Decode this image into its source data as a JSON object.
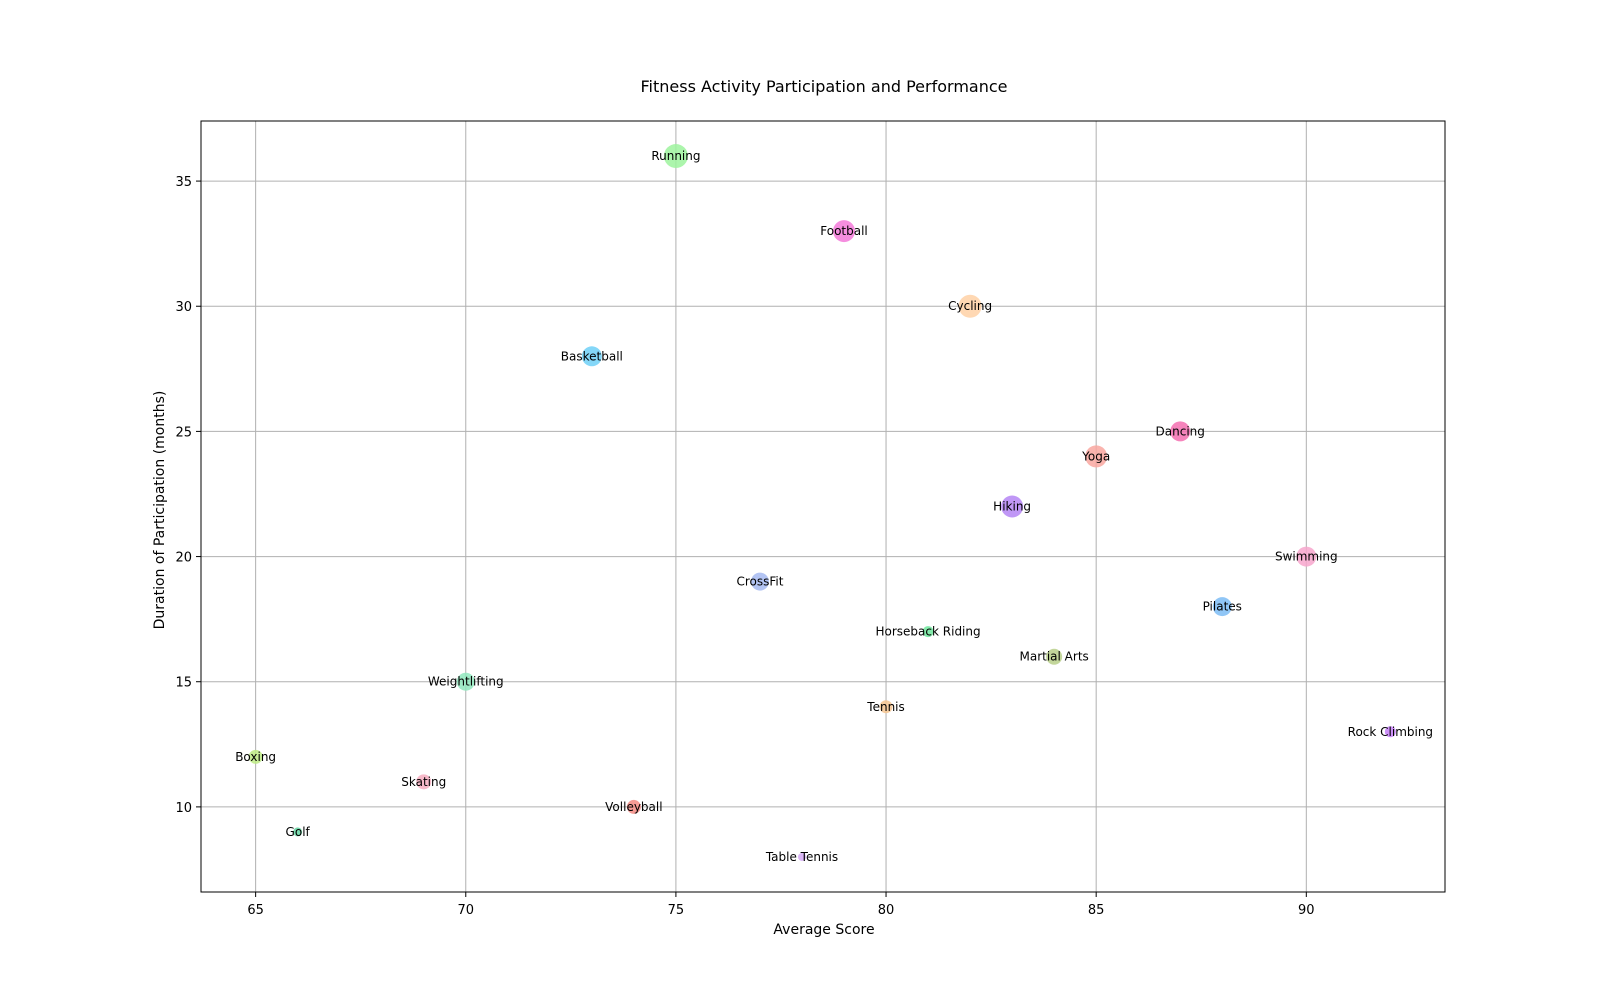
{
  "chart_data": {
    "type": "scatter",
    "title": "Fitness Activity Participation and Performance",
    "xlabel": "Average Score",
    "ylabel": "Duration of Participation (months)",
    "xlim": [
      63.7,
      93.3
    ],
    "ylim": [
      6.6,
      37.4
    ],
    "xticks": [
      65,
      70,
      75,
      80,
      85,
      90
    ],
    "yticks": [
      10,
      15,
      20,
      25,
      30,
      35
    ],
    "grid": true,
    "legend": "none",
    "marker_encoding": "bubble size varies by activity",
    "points": [
      {
        "label": "Running",
        "x": 75,
        "y": 36,
        "size": 12,
        "color": "#9ef39e"
      },
      {
        "label": "Football",
        "x": 79,
        "y": 33,
        "size": 11,
        "color": "#f37ad9"
      },
      {
        "label": "Cycling",
        "x": 82,
        "y": 30,
        "size": 11.5,
        "color": "#ffd1a6"
      },
      {
        "label": "Basketball",
        "x": 73,
        "y": 28,
        "size": 10,
        "color": "#6ed0f7"
      },
      {
        "label": "Dancing",
        "x": 87,
        "y": 25,
        "size": 10,
        "color": "#f46fb0"
      },
      {
        "label": "Yoga",
        "x": 85,
        "y": 24,
        "size": 11,
        "color": "#f9a7a0"
      },
      {
        "label": "Hiking",
        "x": 83,
        "y": 22,
        "size": 11,
        "color": "#b585f5"
      },
      {
        "label": "Swimming",
        "x": 90,
        "y": 20,
        "size": 10,
        "color": "#f7a6cd"
      },
      {
        "label": "CrossFit",
        "x": 77,
        "y": 19,
        "size": 9,
        "color": "#a6baf1"
      },
      {
        "label": "Pilates",
        "x": 88,
        "y": 18,
        "size": 9.5,
        "color": "#7dbcf5"
      },
      {
        "label": "Horseback Riding",
        "x": 81,
        "y": 17,
        "size": 5.5,
        "color": "#6fe69c"
      },
      {
        "label": "Martial Arts",
        "x": 84,
        "y": 16,
        "size": 8,
        "color": "#b8cf8a"
      },
      {
        "label": "Weightlifting",
        "x": 70,
        "y": 15,
        "size": 9,
        "color": "#8fe8bd"
      },
      {
        "label": "Tennis",
        "x": 80,
        "y": 14,
        "size": 6.5,
        "color": "#f6c591"
      },
      {
        "label": "Rock Climbing",
        "x": 92,
        "y": 13,
        "size": 5.5,
        "color": "#c47ef7"
      },
      {
        "label": "Boxing",
        "x": 65,
        "y": 12,
        "size": 7,
        "color": "#bdea83"
      },
      {
        "label": "Skating",
        "x": 69,
        "y": 11,
        "size": 7.5,
        "color": "#f6aec1"
      },
      {
        "label": "Volleyball",
        "x": 74,
        "y": 10,
        "size": 7,
        "color": "#f48b84"
      },
      {
        "label": "Golf",
        "x": 66,
        "y": 9,
        "size": 4.5,
        "color": "#64d6a2"
      },
      {
        "label": "Table Tennis",
        "x": 78,
        "y": 8,
        "size": 4,
        "color": "#d3a9f5"
      }
    ]
  }
}
